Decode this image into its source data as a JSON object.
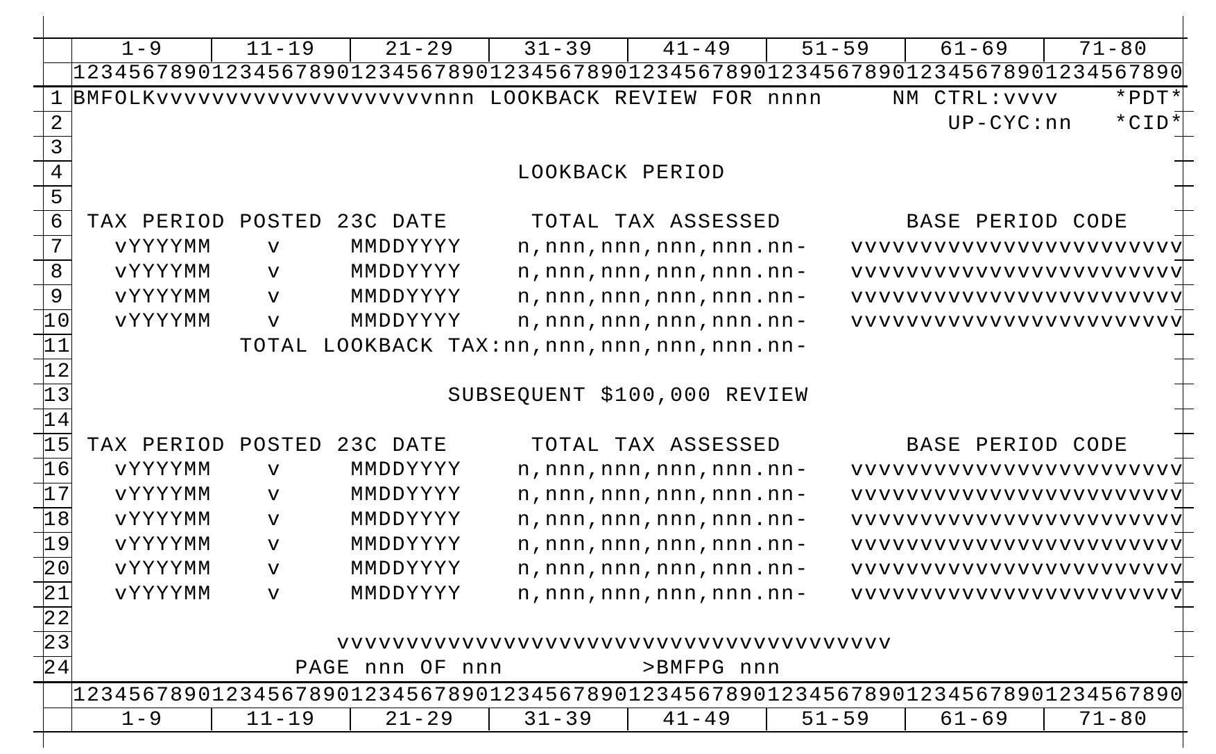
{
  "screen": {
    "title": "BMFOLK LOOKBACK REVIEW screen layout",
    "column_groups": [
      "1-9",
      "11-19",
      "21-29",
      "31-39",
      "41-49",
      "51-59",
      "61-69",
      "71-80"
    ],
    "ruler": "12345678901234567890123456789012345678901234567890123456789012345678901234567890",
    "rows": [
      {
        "num": "1",
        "text": "BMFOLKvvvvvvvvvvvvvvvvvvvvnnn LOOKBACK REVIEW FOR nnnn     NM CTRL:vvvv    *PDT*"
      },
      {
        "num": "2",
        "text": "                                                               UP-CYC:nn   *CID*"
      },
      {
        "num": "3",
        "text": ""
      },
      {
        "num": "4",
        "text": "                                LOOKBACK PERIOD"
      },
      {
        "num": "5",
        "text": ""
      },
      {
        "num": "6",
        "text": " TAX PERIOD POSTED 23C DATE      TOTAL TAX ASSESSED         BASE PERIOD CODE"
      },
      {
        "num": "7",
        "text": "   vYYYYMM    v     MMDDYYYY    n,nnn,nnn,nnn,nnn.nn-   vvvvvvvvvvvvvvvvvvvvvvvv"
      },
      {
        "num": "8",
        "text": "   vYYYYMM    v     MMDDYYYY    n,nnn,nnn,nnn,nnn.nn-   vvvvvvvvvvvvvvvvvvvvvvvv"
      },
      {
        "num": "9",
        "text": "   vYYYYMM    v     MMDDYYYY    n,nnn,nnn,nnn,nnn.nn-   vvvvvvvvvvvvvvvvvvvvvvvv"
      },
      {
        "num": "10",
        "text": "   vYYYYMM    v     MMDDYYYY    n,nnn,nnn,nnn,nnn.nn-   vvvvvvvvvvvvvvvvvvvvvvvv"
      },
      {
        "num": "11",
        "text": "            TOTAL LOOKBACK TAX:nn,nnn,nnn,nnn,nnn.nn-"
      },
      {
        "num": "12",
        "text": ""
      },
      {
        "num": "13",
        "text": "                           SUBSEQUENT $100,000 REVIEW"
      },
      {
        "num": "14",
        "text": ""
      },
      {
        "num": "15",
        "text": " TAX PERIOD POSTED 23C DATE      TOTAL TAX ASSESSED         BASE PERIOD CODE"
      },
      {
        "num": "16",
        "text": "   vYYYYMM    v     MMDDYYYY    n,nnn,nnn,nnn,nnn.nn-   vvvvvvvvvvvvvvvvvvvvvvvv"
      },
      {
        "num": "17",
        "text": "   vYYYYMM    v     MMDDYYYY    n,nnn,nnn,nnn,nnn.nn-   vvvvvvvvvvvvvvvvvvvvvvvv"
      },
      {
        "num": "18",
        "text": "   vYYYYMM    v     MMDDYYYY    n,nnn,nnn,nnn,nnn.nn-   vvvvvvvvvvvvvvvvvvvvvvvv"
      },
      {
        "num": "19",
        "text": "   vYYYYMM    v     MMDDYYYY    n,nnn,nnn,nnn,nnn.nn-   vvvvvvvvvvvvvvvvvvvvvvvv"
      },
      {
        "num": "20",
        "text": "   vYYYYMM    v     MMDDYYYY    n,nnn,nnn,nnn,nnn.nn-   vvvvvvvvvvvvvvvvvvvvvvvv"
      },
      {
        "num": "21",
        "text": "   vYYYYMM    v     MMDDYYYY    n,nnn,nnn,nnn,nnn.nn-   vvvvvvvvvvvvvvvvvvvvvvvv"
      },
      {
        "num": "22",
        "text": ""
      },
      {
        "num": "23",
        "text": "                   vvvvvvvvvvvvvvvvvvvvvvvvvvvvvvvvvvvvvvvv"
      },
      {
        "num": "24",
        "text": "                PAGE nnn OF nnn          >BMFPG nnn"
      }
    ]
  }
}
